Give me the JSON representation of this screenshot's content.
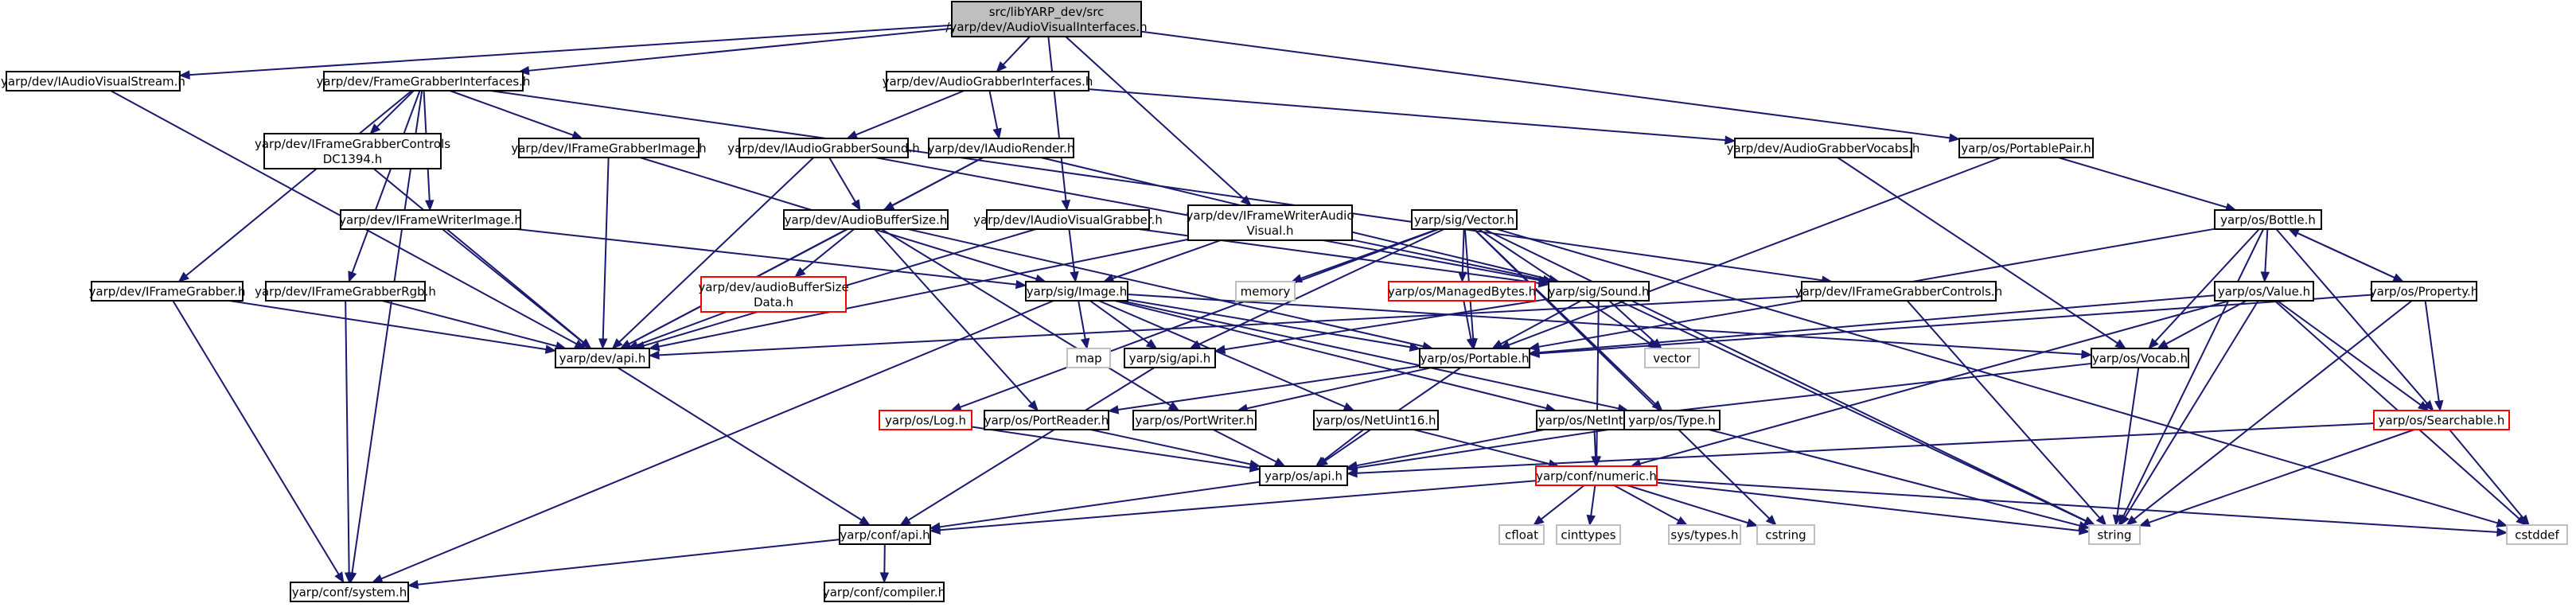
{
  "diagram": {
    "type": "include-dependency-graph",
    "colors": {
      "edge": "#191970",
      "node_border": "#000000",
      "node_border_std": "#bfbfbf",
      "node_border_truncated": "#ff0000",
      "root_fill": "#bfbfbf"
    },
    "nodes": [
      {
        "id": "root",
        "lines": [
          "src/libYARP_dev/src",
          "/yarp/dev/AudioVisualInterfaces.h"
        ],
        "kind": "root"
      },
      {
        "id": "iavstream",
        "lines": [
          "yarp/dev/IAudioVisualStream.h"
        ],
        "kind": "normal"
      },
      {
        "id": "fgi",
        "lines": [
          "yarp/dev/FrameGrabberInterfaces.h"
        ],
        "kind": "normal"
      },
      {
        "id": "agi",
        "lines": [
          "yarp/dev/AudioGrabberInterfaces.h"
        ],
        "kind": "normal"
      },
      {
        "id": "portablepair",
        "lines": [
          "yarp/os/PortablePair.h"
        ],
        "kind": "normal"
      },
      {
        "id": "fgc1394",
        "lines": [
          "yarp/dev/IFrameGrabberControls",
          "DC1394.h"
        ],
        "kind": "normal"
      },
      {
        "id": "fgimage",
        "lines": [
          "yarp/dev/IFrameGrabberImage.h"
        ],
        "kind": "normal"
      },
      {
        "id": "agsound",
        "lines": [
          "yarp/dev/IAudioGrabberSound.h"
        ],
        "kind": "normal"
      },
      {
        "id": "arender",
        "lines": [
          "yarp/dev/IAudioRender.h"
        ],
        "kind": "normal"
      },
      {
        "id": "agvocabs",
        "lines": [
          "yarp/dev/AudioGrabberVocabs.h"
        ],
        "kind": "normal"
      },
      {
        "id": "fwimage",
        "lines": [
          "yarp/dev/IFrameWriterImage.h"
        ],
        "kind": "normal"
      },
      {
        "id": "abufsize",
        "lines": [
          "yarp/dev/AudioBufferSize.h"
        ],
        "kind": "normal"
      },
      {
        "id": "avgrabber",
        "lines": [
          "yarp/dev/IAudioVisualGrabber.h"
        ],
        "kind": "normal"
      },
      {
        "id": "fwav",
        "lines": [
          "yarp/dev/IFrameWriterAudio",
          "Visual.h"
        ],
        "kind": "normal"
      },
      {
        "id": "sigvector",
        "lines": [
          "yarp/sig/Vector.h"
        ],
        "kind": "normal"
      },
      {
        "id": "bottle",
        "lines": [
          "yarp/os/Bottle.h"
        ],
        "kind": "normal"
      },
      {
        "id": "fgrabber",
        "lines": [
          "yarp/dev/IFrameGrabber.h"
        ],
        "kind": "normal"
      },
      {
        "id": "fgrgb",
        "lines": [
          "yarp/dev/IFrameGrabberRgb.h"
        ],
        "kind": "normal"
      },
      {
        "id": "abufsizedata",
        "lines": [
          "yarp/dev/audioBufferSize",
          "Data.h"
        ],
        "kind": "red"
      },
      {
        "id": "sigimage",
        "lines": [
          "yarp/sig/Image.h"
        ],
        "kind": "normal"
      },
      {
        "id": "memory",
        "lines": [
          "memory"
        ],
        "kind": "std"
      },
      {
        "id": "managedbytes",
        "lines": [
          "yarp/os/ManagedBytes.h"
        ],
        "kind": "red"
      },
      {
        "id": "sigsound",
        "lines": [
          "yarp/sig/Sound.h"
        ],
        "kind": "normal"
      },
      {
        "id": "fgcontrols",
        "lines": [
          "yarp/dev/IFrameGrabberControls.h"
        ],
        "kind": "normal"
      },
      {
        "id": "value",
        "lines": [
          "yarp/os/Value.h"
        ],
        "kind": "normal"
      },
      {
        "id": "property",
        "lines": [
          "yarp/os/Property.h"
        ],
        "kind": "normal"
      },
      {
        "id": "devapi",
        "lines": [
          "yarp/dev/api.h"
        ],
        "kind": "normal"
      },
      {
        "id": "map",
        "lines": [
          "map"
        ],
        "kind": "std"
      },
      {
        "id": "sigapi",
        "lines": [
          "yarp/sig/api.h"
        ],
        "kind": "normal"
      },
      {
        "id": "portable",
        "lines": [
          "yarp/os/Portable.h"
        ],
        "kind": "normal"
      },
      {
        "id": "vector",
        "lines": [
          "vector"
        ],
        "kind": "std"
      },
      {
        "id": "vocab",
        "lines": [
          "yarp/os/Vocab.h"
        ],
        "kind": "normal"
      },
      {
        "id": "log",
        "lines": [
          "yarp/os/Log.h"
        ],
        "kind": "red"
      },
      {
        "id": "portreader",
        "lines": [
          "yarp/os/PortReader.h"
        ],
        "kind": "normal"
      },
      {
        "id": "portwriter",
        "lines": [
          "yarp/os/PortWriter.h"
        ],
        "kind": "normal"
      },
      {
        "id": "netuint16",
        "lines": [
          "yarp/os/NetUint16.h"
        ],
        "kind": "normal"
      },
      {
        "id": "netint32",
        "lines": [
          "yarp/os/NetInt32.h"
        ],
        "kind": "normal"
      },
      {
        "id": "type",
        "lines": [
          "yarp/os/Type.h"
        ],
        "kind": "normal"
      },
      {
        "id": "searchable",
        "lines": [
          "yarp/os/Searchable.h"
        ],
        "kind": "red"
      },
      {
        "id": "osapi",
        "lines": [
          "yarp/os/api.h"
        ],
        "kind": "normal"
      },
      {
        "id": "numeric",
        "lines": [
          "yarp/conf/numeric.h"
        ],
        "kind": "red"
      },
      {
        "id": "confapi",
        "lines": [
          "yarp/conf/api.h"
        ],
        "kind": "normal"
      },
      {
        "id": "cfloat",
        "lines": [
          "cfloat"
        ],
        "kind": "std"
      },
      {
        "id": "cinttypes",
        "lines": [
          "cinttypes"
        ],
        "kind": "std"
      },
      {
        "id": "systypes",
        "lines": [
          "sys/types.h"
        ],
        "kind": "std"
      },
      {
        "id": "cstring",
        "lines": [
          "cstring"
        ],
        "kind": "std"
      },
      {
        "id": "string",
        "lines": [
          "string"
        ],
        "kind": "std"
      },
      {
        "id": "cstddef",
        "lines": [
          "cstddef"
        ],
        "kind": "std"
      },
      {
        "id": "confsystem",
        "lines": [
          "yarp/conf/system.h"
        ],
        "kind": "normal"
      },
      {
        "id": "confcompiler",
        "lines": [
          "yarp/conf/compiler.h"
        ],
        "kind": "normal"
      }
    ],
    "edges": [
      [
        "root",
        "iavstream"
      ],
      [
        "root",
        "fgi"
      ],
      [
        "root",
        "agi"
      ],
      [
        "root",
        "portablepair"
      ],
      [
        "root",
        "avgrabber"
      ],
      [
        "root",
        "fwav"
      ],
      [
        "iavstream",
        "devapi"
      ],
      [
        "fgi",
        "fgc1394"
      ],
      [
        "fgi",
        "fgimage"
      ],
      [
        "fgi",
        "fwimage"
      ],
      [
        "fgi",
        "fgrabber"
      ],
      [
        "fgi",
        "fgrgb"
      ],
      [
        "fgi",
        "fgcontrols"
      ],
      [
        "fgi",
        "confsystem"
      ],
      [
        "agi",
        "agsound"
      ],
      [
        "agi",
        "arender"
      ],
      [
        "agi",
        "agvocabs"
      ],
      [
        "portablepair",
        "portable"
      ],
      [
        "portablepair",
        "bottle"
      ],
      [
        "fgc1394",
        "devapi"
      ],
      [
        "fgimage",
        "devapi"
      ],
      [
        "fgimage",
        "sigimage"
      ],
      [
        "agsound",
        "devapi"
      ],
      [
        "agsound",
        "abufsize"
      ],
      [
        "agsound",
        "sigsound"
      ],
      [
        "arender",
        "devapi"
      ],
      [
        "arender",
        "abufsize"
      ],
      [
        "arender",
        "sigsound"
      ],
      [
        "agvocabs",
        "vocab"
      ],
      [
        "fwimage",
        "devapi"
      ],
      [
        "fwimage",
        "sigimage"
      ],
      [
        "abufsize",
        "devapi"
      ],
      [
        "abufsize",
        "abufsizedata"
      ],
      [
        "abufsize",
        "portable"
      ],
      [
        "abufsize",
        "portreader"
      ],
      [
        "abufsize",
        "portwriter"
      ],
      [
        "avgrabber",
        "devapi"
      ],
      [
        "avgrabber",
        "sigimage"
      ],
      [
        "avgrabber",
        "sigsound"
      ],
      [
        "fwav",
        "devapi"
      ],
      [
        "fwav",
        "sigimage"
      ],
      [
        "fwav",
        "sigsound"
      ],
      [
        "sigvector",
        "memory"
      ],
      [
        "sigvector",
        "managedbytes"
      ],
      [
        "sigvector",
        "portable"
      ],
      [
        "sigvector",
        "sigapi"
      ],
      [
        "sigvector",
        "log"
      ],
      [
        "sigvector",
        "vector"
      ],
      [
        "sigvector",
        "type"
      ],
      [
        "sigvector",
        "string"
      ],
      [
        "sigvector",
        "cstring"
      ],
      [
        "sigvector",
        "cstddef"
      ],
      [
        "bottle",
        "portable"
      ],
      [
        "bottle",
        "searchable"
      ],
      [
        "bottle",
        "value"
      ],
      [
        "bottle",
        "property"
      ],
      [
        "bottle",
        "vocab"
      ],
      [
        "bottle",
        "string"
      ],
      [
        "fgrabber",
        "devapi"
      ],
      [
        "fgrabber",
        "confsystem"
      ],
      [
        "fgrgb",
        "devapi"
      ],
      [
        "fgrgb",
        "confsystem"
      ],
      [
        "abufsizedata",
        "devapi"
      ],
      [
        "sigimage",
        "map"
      ],
      [
        "sigimage",
        "sigapi"
      ],
      [
        "sigimage",
        "portable"
      ],
      [
        "sigimage",
        "vocab"
      ],
      [
        "sigimage",
        "type"
      ],
      [
        "sigimage",
        "netuint16"
      ],
      [
        "sigimage",
        "netint32"
      ],
      [
        "sigimage",
        "confsystem"
      ],
      [
        "managedbytes",
        "portable"
      ],
      [
        "sigsound",
        "sigapi"
      ],
      [
        "sigsound",
        "portable"
      ],
      [
        "sigsound",
        "vector"
      ],
      [
        "sigsound",
        "string"
      ],
      [
        "sigsound",
        "numeric"
      ],
      [
        "fgcontrols",
        "devapi"
      ],
      [
        "fgcontrols",
        "string"
      ],
      [
        "value",
        "portable"
      ],
      [
        "value",
        "searchable"
      ],
      [
        "value",
        "vocab"
      ],
      [
        "value",
        "string"
      ],
      [
        "value",
        "cstddef"
      ],
      [
        "value",
        "numeric"
      ],
      [
        "property",
        "portable"
      ],
      [
        "property",
        "searchable"
      ],
      [
        "property",
        "string"
      ],
      [
        "property",
        "bottle"
      ],
      [
        "devapi",
        "confapi"
      ],
      [
        "sigapi",
        "confapi"
      ],
      [
        "portable",
        "portreader"
      ],
      [
        "portable",
        "portwriter"
      ],
      [
        "portable",
        "osapi"
      ],
      [
        "vocab",
        "netint32"
      ],
      [
        "vocab",
        "string"
      ],
      [
        "portreader",
        "osapi"
      ],
      [
        "portwriter",
        "osapi"
      ],
      [
        "log",
        "osapi"
      ],
      [
        "netuint16",
        "osapi"
      ],
      [
        "netuint16",
        "numeric"
      ],
      [
        "netint32",
        "osapi"
      ],
      [
        "netint32",
        "numeric"
      ],
      [
        "type",
        "osapi"
      ],
      [
        "type",
        "string"
      ],
      [
        "searchable",
        "osapi"
      ],
      [
        "searchable",
        "string"
      ],
      [
        "searchable",
        "cstddef"
      ],
      [
        "osapi",
        "confapi"
      ],
      [
        "numeric",
        "confapi"
      ],
      [
        "numeric",
        "cfloat"
      ],
      [
        "numeric",
        "cinttypes"
      ],
      [
        "numeric",
        "systypes"
      ],
      [
        "numeric",
        "cstring"
      ],
      [
        "numeric",
        "string"
      ],
      [
        "numeric",
        "cstddef"
      ],
      [
        "confapi",
        "confsystem"
      ],
      [
        "confapi",
        "confcompiler"
      ]
    ]
  }
}
